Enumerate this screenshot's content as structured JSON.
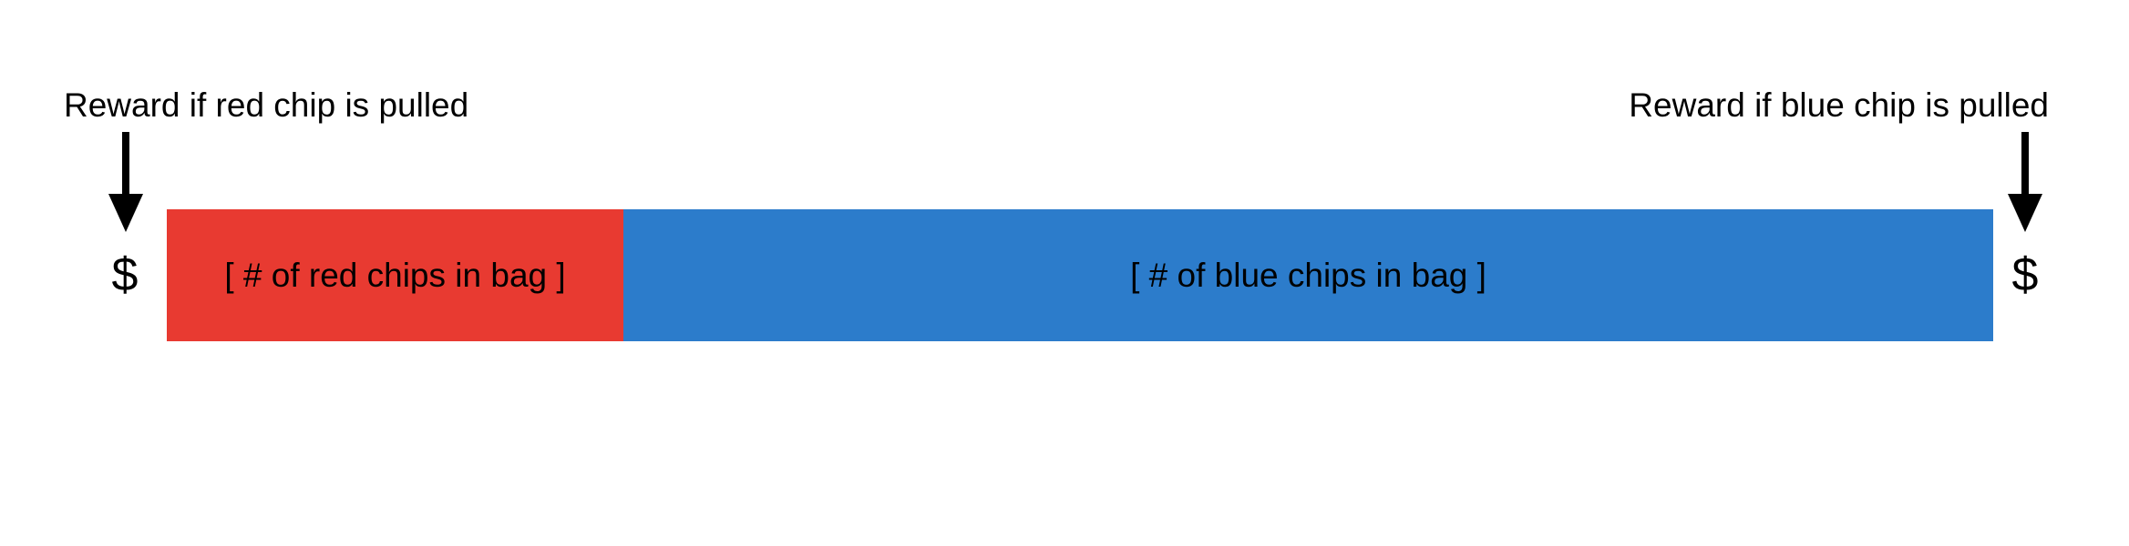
{
  "labels": {
    "red_reward": "Reward if red chip is pulled",
    "blue_reward": "Reward if blue chip is pulled"
  },
  "rewards": {
    "red_symbol": "$",
    "blue_symbol": "$"
  },
  "bar": {
    "red_segment_text": "[ # of red chips in bag ]",
    "blue_segment_text": "[ # of blue chips in bag ]",
    "red_fraction": 0.25
  },
  "icons": {
    "left_arrow": "arrow-down-icon",
    "right_arrow": "arrow-down-icon"
  },
  "colors": {
    "red": "#E83A31",
    "blue": "#2C7CCB",
    "arrow": "#000000"
  }
}
